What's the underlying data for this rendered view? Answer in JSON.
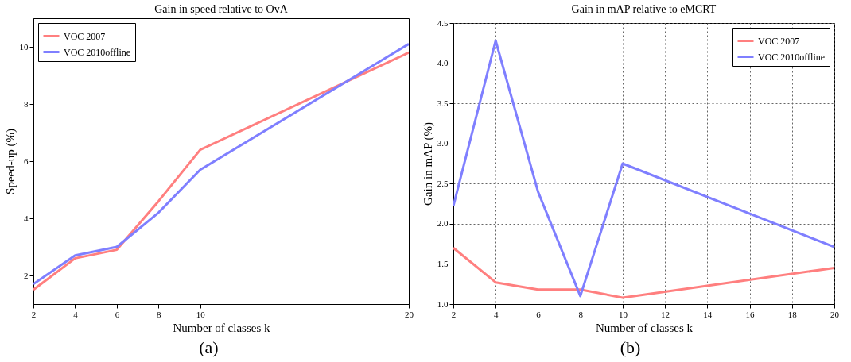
{
  "chart_data": [
    {
      "type": "line",
      "title": "Gain in speed relative to OvA",
      "xlabel": "Number of classes k",
      "ylabel": "Speed-up (%)",
      "x": [
        2,
        4,
        6,
        8,
        10,
        20
      ],
      "xlim": [
        2,
        20
      ],
      "xticks": [
        2,
        4,
        6,
        8,
        10,
        20
      ],
      "ylim": [
        1,
        11
      ],
      "yticks": [
        2,
        4,
        6,
        8,
        10
      ],
      "grid": false,
      "legend": "top left",
      "annotations": [
        "(a)"
      ],
      "series": [
        {
          "name": "VOC 2007",
          "color": "#ff7f7f",
          "values": [
            1.5,
            2.6,
            2.9,
            4.6,
            6.4,
            9.8
          ]
        },
        {
          "name": "VOC 2010offline",
          "color": "#7f7fff",
          "values": [
            1.7,
            2.7,
            3.0,
            4.2,
            5.7,
            10.1
          ]
        }
      ]
    },
    {
      "type": "line",
      "title": "Gain in mAP relative to eMCRT",
      "xlabel": "Number of classes k",
      "ylabel": "Gain in mAP (%)",
      "x": [
        2,
        4,
        6,
        8,
        10,
        20
      ],
      "xlim": [
        2,
        20
      ],
      "xticks": [
        2,
        4,
        6,
        8,
        10,
        12,
        14,
        16,
        18,
        20
      ],
      "ylim": [
        1,
        4.5
      ],
      "yticks": [
        {
          "value": 1,
          "label": "1.0"
        },
        1.5,
        {
          "value": 2,
          "label": "2.0"
        },
        2.5,
        {
          "value": 3,
          "label": "3.0"
        },
        3.5,
        {
          "value": 4,
          "label": "4.0"
        },
        4.5
      ],
      "grid": true,
      "legend": "top right",
      "annotations": [
        "(b)"
      ],
      "series": [
        {
          "name": "VOC 2007",
          "color": "#ff7f7f",
          "values": [
            1.7,
            1.27,
            1.18,
            1.18,
            1.08,
            1.45
          ]
        },
        {
          "name": "VOC 2010offline",
          "color": "#7f7fff",
          "values": [
            2.22,
            4.28,
            2.4,
            1.1,
            2.75,
            1.71
          ]
        }
      ]
    }
  ]
}
